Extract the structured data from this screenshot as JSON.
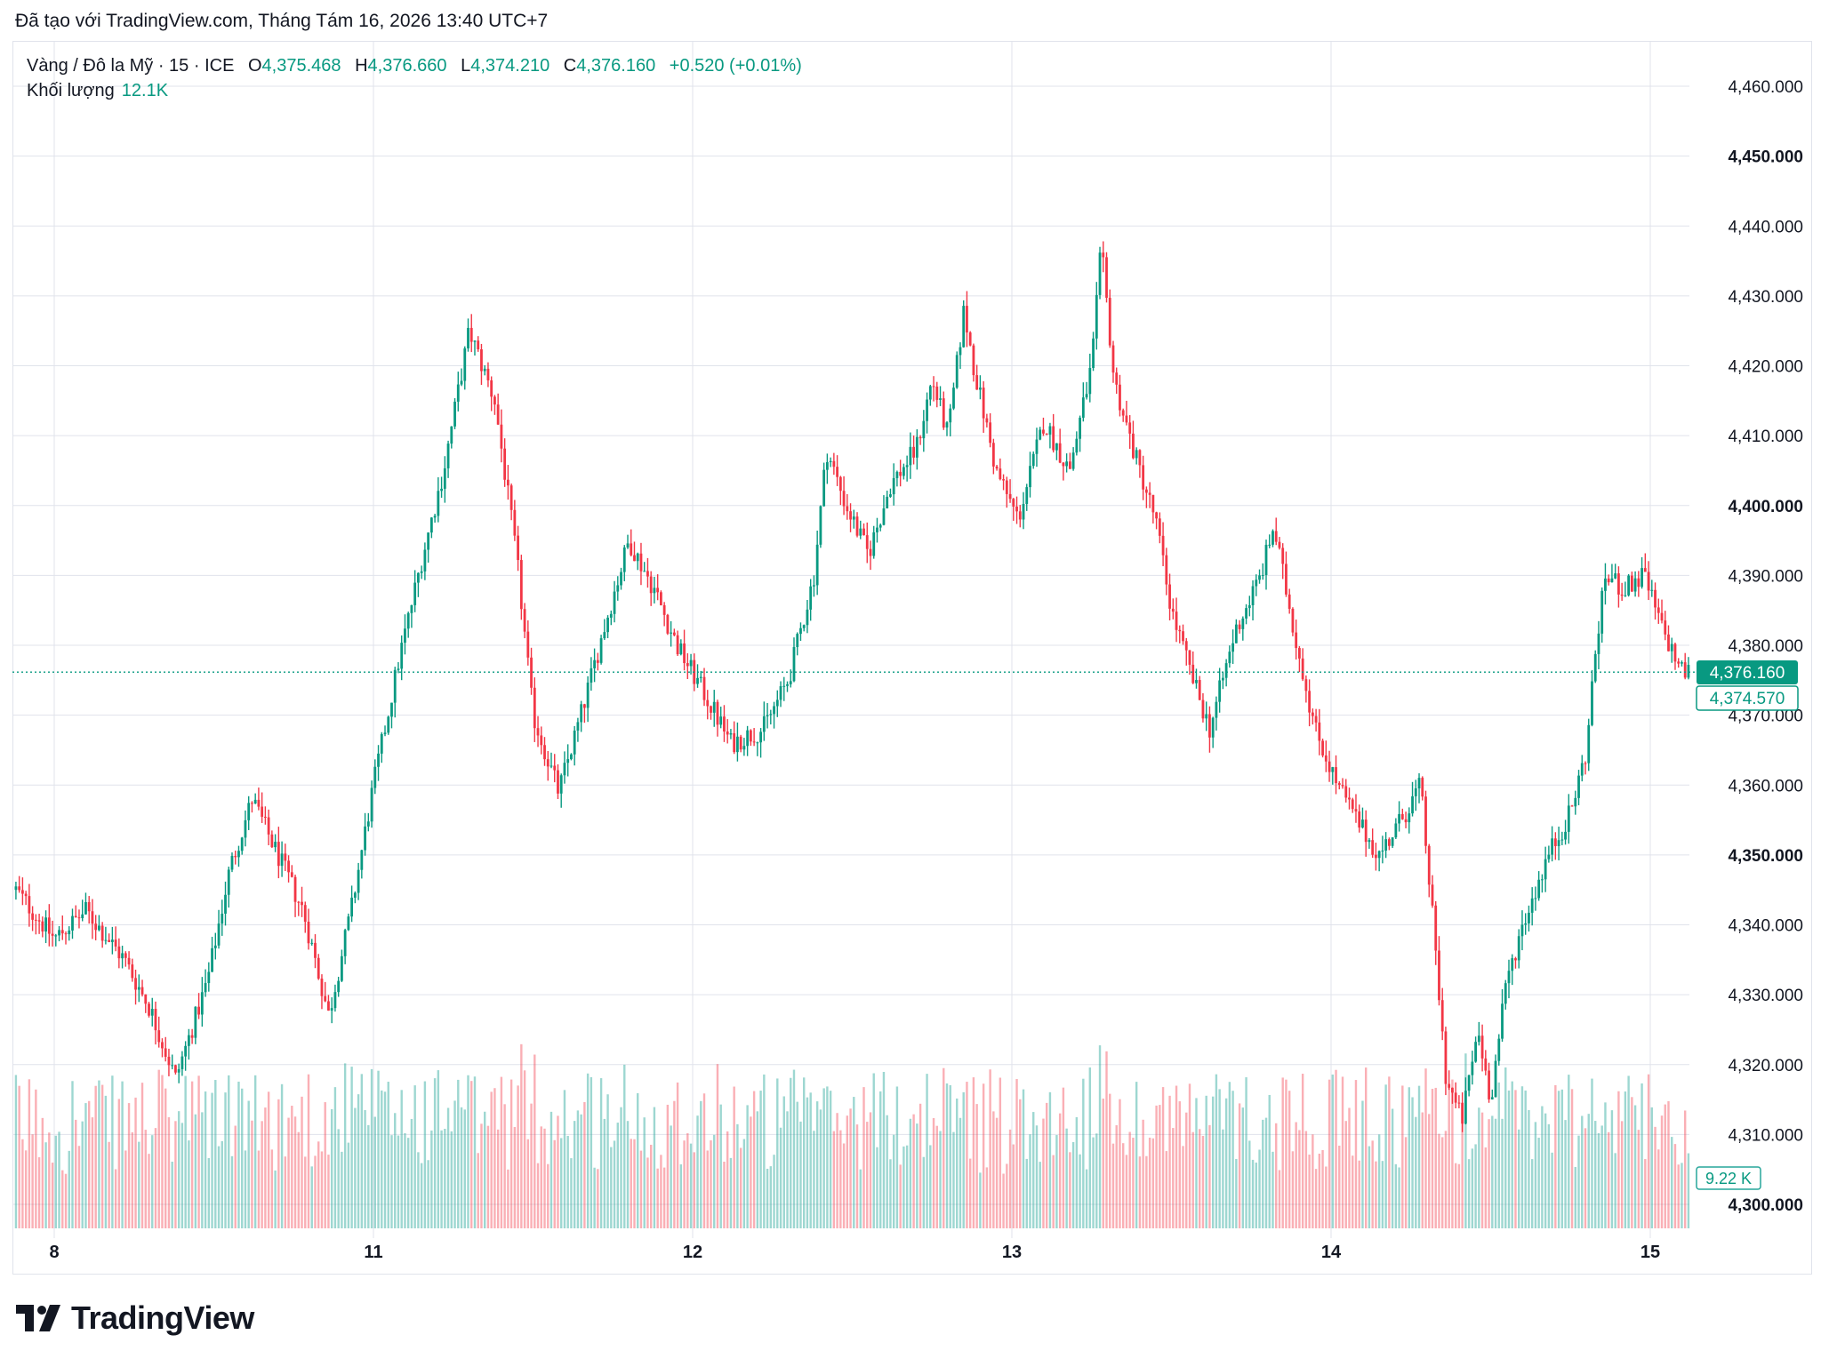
{
  "caption": "Đã tạo với TradingView.com, Tháng Tám 16, 2026 13:40 UTC+7",
  "legend": {
    "symbol": "Vàng / Đô la Mỹ · 15 · ICE",
    "open_label": "O",
    "open": "4,375.468",
    "high_label": "H",
    "high": "4,376.660",
    "low_label": "L",
    "low": "4,374.210",
    "close_label": "C",
    "close": "4,376.160",
    "change": "+0.520 (+0.01%)",
    "volume_label": "Khối lượng",
    "volume": "12.1K"
  },
  "labels": {
    "last_price": "4,376.160",
    "secondary_price": "4,374.570",
    "volume_last": "9.22 K"
  },
  "logo": {
    "text": "TradingView",
    "icon": "tradingview-logo-icon"
  },
  "colors": {
    "up": "#089981",
    "down": "#f23645",
    "grid": "#e0e3eb",
    "text": "#131722",
    "bg": "#ffffff"
  },
  "chart_data": {
    "type": "candlestick",
    "symbol": "Vàng / Đô la Mỹ",
    "interval": "15",
    "exchange": "ICE",
    "ylim": [
      4300,
      4460
    ],
    "y_ticks": [
      4300,
      4310,
      4320,
      4330,
      4340,
      4350,
      4360,
      4370,
      4380,
      4390,
      4400,
      4410,
      4420,
      4430,
      4440,
      4450,
      4460
    ],
    "y_tick_labels": [
      "4,300.000",
      "4,310.000",
      "4,320.000",
      "4,330.000",
      "4,340.000",
      "4,350.000",
      "4,360.000",
      "4,370.000",
      "4,380.000",
      "4,390.000",
      "4,400.000",
      "4,410.000",
      "4,420.000",
      "4,430.000",
      "4,440.000",
      "4,450.000",
      "4,460.000"
    ],
    "bold_ticks": [
      4300,
      4350,
      4400,
      4450
    ],
    "x_tick_labels": [
      "8",
      "11",
      "12",
      "13",
      "14",
      "15"
    ],
    "x_ticks_at_day": [
      0,
      1,
      2,
      3,
      4,
      5
    ],
    "day_span": [
      -0.12,
      5.12
    ],
    "last_price": 4376.16,
    "secondary_price": 4374.57,
    "price_path": [
      [
        -0.12,
        4345
      ],
      [
        0.0,
        4338
      ],
      [
        0.1,
        4342
      ],
      [
        0.22,
        4335
      ],
      [
        0.3,
        4328
      ],
      [
        0.38,
        4318
      ],
      [
        0.48,
        4332
      ],
      [
        0.55,
        4348
      ],
      [
        0.62,
        4358
      ],
      [
        0.7,
        4350
      ],
      [
        0.78,
        4342
      ],
      [
        0.86,
        4327
      ],
      [
        0.93,
        4342
      ],
      [
        1.0,
        4360
      ],
      [
        1.08,
        4378
      ],
      [
        1.15,
        4392
      ],
      [
        1.22,
        4405
      ],
      [
        1.3,
        4425
      ],
      [
        1.38,
        4415
      ],
      [
        1.45,
        4392
      ],
      [
        1.5,
        4370
      ],
      [
        1.58,
        4359
      ],
      [
        1.65,
        4370
      ],
      [
        1.72,
        4382
      ],
      [
        1.8,
        4395
      ],
      [
        1.88,
        4388
      ],
      [
        1.95,
        4380
      ],
      [
        2.05,
        4372
      ],
      [
        2.12,
        4366
      ],
      [
        2.22,
        4368
      ],
      [
        2.3,
        4375
      ],
      [
        2.38,
        4390
      ],
      [
        2.42,
        4408
      ],
      [
        2.48,
        4400
      ],
      [
        2.55,
        4393
      ],
      [
        2.62,
        4403
      ],
      [
        2.7,
        4408
      ],
      [
        2.75,
        4418
      ],
      [
        2.8,
        4410
      ],
      [
        2.85,
        4428
      ],
      [
        2.88,
        4420
      ],
      [
        2.95,
        4405
      ],
      [
        3.02,
        4398
      ],
      [
        3.1,
        4412
      ],
      [
        3.18,
        4405
      ],
      [
        3.25,
        4420
      ],
      [
        3.28,
        4437
      ],
      [
        3.32,
        4418
      ],
      [
        3.38,
        4408
      ],
      [
        3.45,
        4398
      ],
      [
        3.5,
        4385
      ],
      [
        3.56,
        4376
      ],
      [
        3.62,
        4368
      ],
      [
        3.7,
        4382
      ],
      [
        3.78,
        4390
      ],
      [
        3.82,
        4397
      ],
      [
        3.88,
        4383
      ],
      [
        3.95,
        4368
      ],
      [
        4.02,
        4360
      ],
      [
        4.08,
        4355
      ],
      [
        4.15,
        4350
      ],
      [
        4.22,
        4355
      ],
      [
        4.28,
        4360
      ],
      [
        4.32,
        4340
      ],
      [
        4.36,
        4318
      ],
      [
        4.41,
        4312
      ],
      [
        4.46,
        4325
      ],
      [
        4.5,
        4315
      ],
      [
        4.55,
        4332
      ],
      [
        4.6,
        4340
      ],
      [
        4.68,
        4350
      ],
      [
        4.75,
        4356
      ],
      [
        4.8,
        4365
      ],
      [
        4.83,
        4380
      ],
      [
        4.86,
        4390
      ],
      [
        4.92,
        4388
      ],
      [
        4.98,
        4390
      ],
      [
        5.04,
        4382
      ],
      [
        5.1,
        4376.16
      ],
      [
        5.12,
        4376.16
      ]
    ]
  }
}
